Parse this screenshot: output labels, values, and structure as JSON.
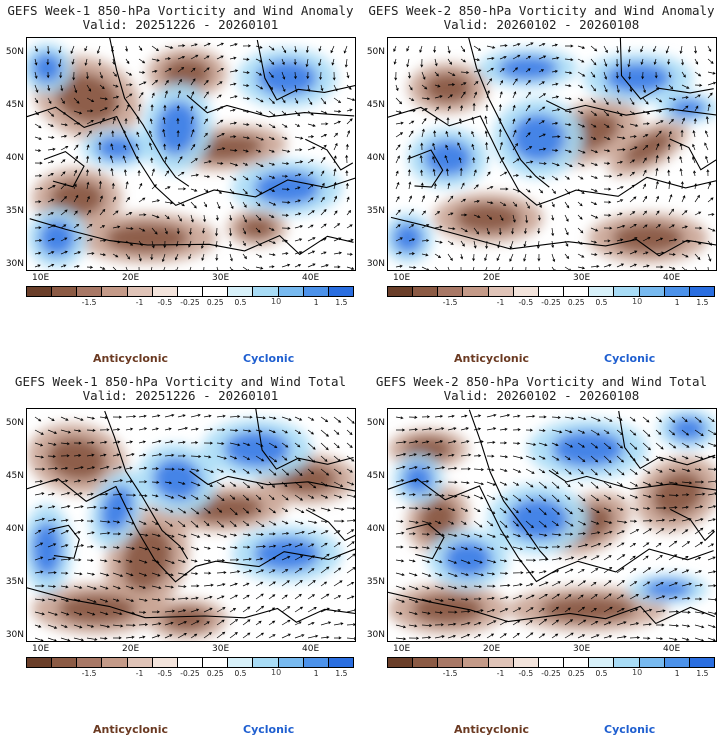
{
  "panels": [
    {
      "id": "p1",
      "title_line1": "GEFS Week-1 850-hPa Vorticity and Wind Anomaly",
      "title_line2": "Valid: 20251226 - 20260101",
      "variant": 0
    },
    {
      "id": "p2",
      "title_line1": "GEFS Week-2 850-hPa Vorticity and Wind Anomaly",
      "title_line2": "Valid: 20260102 - 20260108",
      "variant": 1
    },
    {
      "id": "p3",
      "title_line1": "GEFS Week-1 850-hPa Vorticity and Wind Total",
      "title_line2": "Valid: 20251226 - 20260101",
      "variant": 2
    },
    {
      "id": "p4",
      "title_line1": "GEFS Week-2 850-hPa Vorticity and Wind Total",
      "title_line2": "Valid: 20260102 - 20260108",
      "variant": 3
    }
  ],
  "lat_labels": [
    "50N",
    "45N",
    "40N",
    "35N",
    "30N"
  ],
  "lon_labels": [
    "10E",
    "20E",
    "30E",
    "40E"
  ],
  "colorbar": {
    "colors": [
      "#6b3f2a",
      "#8b5a44",
      "#a87866",
      "#c49a88",
      "#e0c4b8",
      "#f3e4dc",
      "#ffffff",
      "#ffffff",
      "#d8f1fa",
      "#a8dcf6",
      "#78baf0",
      "#4c92ea",
      "#2a6ee0"
    ],
    "labels": [
      "-1.5",
      "-1",
      "-0.5",
      "-0.25",
      "0.25",
      "0.5",
      "1",
      "1.5"
    ],
    "unit": "10"
  },
  "legend": {
    "anticyclonic": "Anticyclonic",
    "cyclonic": "Cyclonic"
  },
  "colors": {
    "anticyclonic": "#6b3a22",
    "cyclonic": "#1f5fd0",
    "negative_strong": "#8b5a44",
    "negative_weak": "#c9a493",
    "positive_weak": "#a8dcf6",
    "positive_strong": "#3f7fe6"
  }
}
